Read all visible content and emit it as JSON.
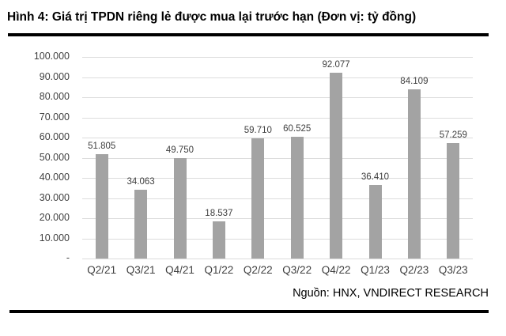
{
  "title": "Hình 4: Giá trị TPDN riêng lẻ được mua lại trước hạn (Đơn vị: tỷ đồng)",
  "source": "Nguồn: HNX, VNDIRECT RESEARCH",
  "colors": {
    "bar": "#a3a3a3",
    "gridline": "#dcdcdc",
    "axis_label": "#404040",
    "title": "#000000"
  },
  "chart_data": {
    "type": "bar",
    "title": "Hình 4: Giá trị TPDN riêng lẻ được mua lại trước hạn (Đơn vị: tỷ đồng)",
    "categories": [
      "Q2/21",
      "Q3/21",
      "Q4/21",
      "Q1/22",
      "Q2/22",
      "Q3/22",
      "Q4/22",
      "Q1/23",
      "Q2/23",
      "Q3/23"
    ],
    "values": [
      51805,
      34063,
      49750,
      18537,
      59710,
      60525,
      92077,
      36410,
      84109,
      57259
    ],
    "value_labels": [
      "51.805",
      "34.063",
      "49.750",
      "18.537",
      "59.710",
      "60.525",
      "92.077",
      "36.410",
      "84.109",
      "57.259"
    ],
    "y_tick_labels": [
      "100.000",
      "90.000",
      "80.000",
      "70.000",
      "60.000",
      "50.000",
      "40.000",
      "30.000",
      "20.000",
      "10.000",
      "-"
    ],
    "y_tick_values": [
      100000,
      90000,
      80000,
      70000,
      60000,
      50000,
      40000,
      30000,
      20000,
      10000,
      0
    ],
    "ylim": [
      0,
      100000
    ],
    "xlabel": "",
    "ylabel": "",
    "grid": true,
    "legend": false,
    "unit": "tỷ đồng",
    "source": "Nguồn: HNX, VNDIRECT RESEARCH"
  }
}
